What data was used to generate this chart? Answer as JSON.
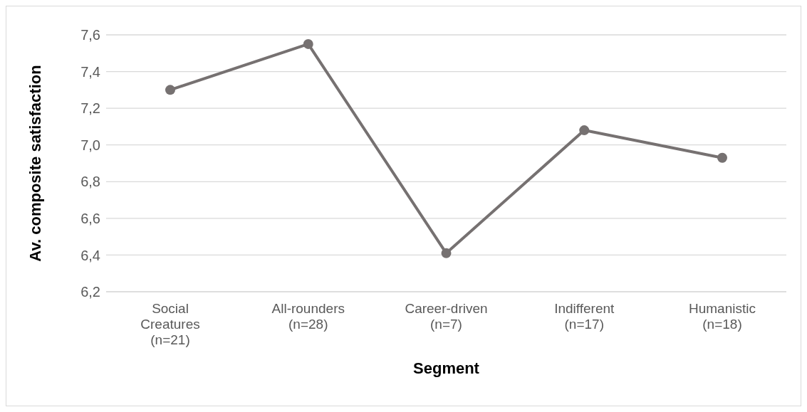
{
  "chart_data": {
    "type": "line",
    "xlabel": "Segment",
    "ylabel": "Av. composite satisfaction",
    "categories": [
      "Social Creatures (n=21)",
      "All-rounders (n=28)",
      "Career-driven (n=7)",
      "Indifferent (n=17)",
      "Humanistic (n=18)"
    ],
    "series": [
      {
        "color": "#767171",
        "values": [
          7.3,
          7.55,
          6.41,
          7.08,
          6.93
        ]
      }
    ],
    "ylim": [
      6.2,
      7.6
    ],
    "yticks": [
      {
        "value": 6.2,
        "label": "6,2"
      },
      {
        "value": 6.4,
        "label": "6,4"
      },
      {
        "value": 6.6,
        "label": "6,6"
      },
      {
        "value": 6.8,
        "label": "6,8"
      },
      {
        "value": 7.0,
        "label": "7,0"
      },
      {
        "value": 7.2,
        "label": "7,2"
      },
      {
        "value": 7.4,
        "label": "7,4"
      },
      {
        "value": 7.6,
        "label": "7,6"
      }
    ],
    "grid": "y",
    "legend": false,
    "marker": "circle",
    "line_style": "solid"
  }
}
